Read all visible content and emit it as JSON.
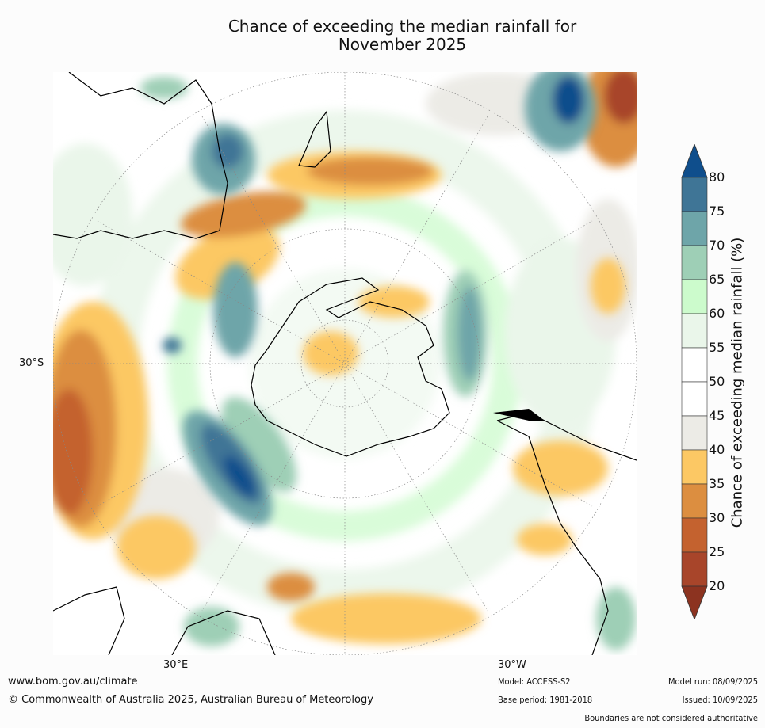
{
  "title": {
    "line1": "Chance of exceeding the median rainfall for",
    "line2": "November 2025"
  },
  "map": {
    "projection": "south-polar-stereographic",
    "lat_label": "30°S",
    "lon_labels": [
      "30°E",
      "30°W"
    ],
    "land_color": "#000000",
    "missing_value": "no data (black area near Antarctic Peninsula tip)"
  },
  "colorbar": {
    "label": "Chance of exceeding median rainfall (%)",
    "ticks": [
      "80",
      "75",
      "70",
      "65",
      "60",
      "55",
      "50",
      "45",
      "40",
      "35",
      "30",
      "25",
      "20"
    ],
    "bins": [
      {
        "range": "> 80",
        "color": "#0f4e8c"
      },
      {
        "range": "75-80",
        "color": "#3f7596"
      },
      {
        "range": "70-75",
        "color": "#6ea5a9"
      },
      {
        "range": "65-70",
        "color": "#9ecfb6"
      },
      {
        "range": "60-65",
        "color": "#ccfbcc"
      },
      {
        "range": "55-60",
        "color": "#eaf6ea"
      },
      {
        "range": "50-55",
        "color": "#ffffff"
      },
      {
        "range": "45-50",
        "color": "#ffffff"
      },
      {
        "range": "40-45",
        "color": "#ecebe6"
      },
      {
        "range": "35-40",
        "color": "#fcc864"
      },
      {
        "range": "30-35",
        "color": "#dc8e40"
      },
      {
        "range": "25-30",
        "color": "#c4622f"
      },
      {
        "range": "20-25",
        "color": "#a8452a"
      },
      {
        "range": "< 20",
        "color": "#8c3320"
      }
    ]
  },
  "footer": {
    "website": "www.bom.gov.au/climate",
    "copyright": "© Commonwealth of Australia 2025, Australian Bureau of Meteorology",
    "model": "Model: ACCESS-S2",
    "base_period": "Base period: 1981-2018",
    "model_run": "Model run: 08/09/2025",
    "issued": "Issued: 10/09/2025",
    "disclaimer": "Boundaries are not considered authoritative"
  }
}
